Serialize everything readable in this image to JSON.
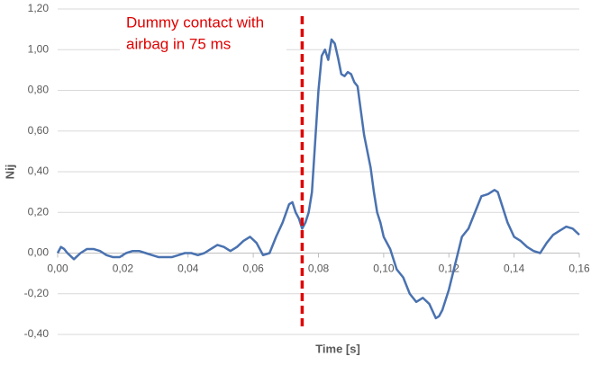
{
  "chart_data": {
    "type": "line",
    "x_label": "Time [s]",
    "y_label": "Nij",
    "xlim": [
      0,
      0.16
    ],
    "ylim": [
      -0.4,
      1.2
    ],
    "xticks": [
      {
        "value": 0,
        "label": "0,00"
      },
      {
        "value": 0.02,
        "label": "0,02"
      },
      {
        "value": 0.04,
        "label": "0,04"
      },
      {
        "value": 0.06,
        "label": "0,06"
      },
      {
        "value": 0.08,
        "label": "0,08"
      },
      {
        "value": 0.1,
        "label": "0,10"
      },
      {
        "value": 0.12,
        "label": "0,12"
      },
      {
        "value": 0.14,
        "label": "0,14"
      },
      {
        "value": 0.16,
        "label": "0,16"
      }
    ],
    "yticks": [
      {
        "value": -0.4,
        "label": "-0,40"
      },
      {
        "value": -0.2,
        "label": "-0,20"
      },
      {
        "value": 0,
        "label": "0,00"
      },
      {
        "value": 0.2,
        "label": "0,20"
      },
      {
        "value": 0.4,
        "label": "0,40"
      },
      {
        "value": 0.6,
        "label": "0,60"
      },
      {
        "value": 0.8,
        "label": "0,80"
      },
      {
        "value": 1,
        "label": "1,00"
      },
      {
        "value": 1.2,
        "label": "1,20"
      }
    ],
    "grid": true,
    "annotation": {
      "lines": [
        "Dummy contact with",
        "airbag in 75 ms"
      ],
      "x": 0.075,
      "color": "#e00000"
    },
    "series": [
      {
        "color": "#4a72b0",
        "x": [
          0,
          0.001,
          0.002,
          0.003,
          0.005,
          0.007,
          0.009,
          0.011,
          0.013,
          0.015,
          0.017,
          0.019,
          0.021,
          0.023,
          0.025,
          0.027,
          0.029,
          0.031,
          0.033,
          0.035,
          0.037,
          0.039,
          0.041,
          0.043,
          0.045,
          0.047,
          0.049,
          0.051,
          0.053,
          0.055,
          0.057,
          0.059,
          0.061,
          0.063,
          0.065,
          0.067,
          0.069,
          0.071,
          0.072,
          0.073,
          0.074,
          0.075,
          0.076,
          0.077,
          0.078,
          0.079,
          0.08,
          0.081,
          0.082,
          0.083,
          0.084,
          0.085,
          0.086,
          0.087,
          0.088,
          0.089,
          0.09,
          0.091,
          0.092,
          0.093,
          0.094,
          0.095,
          0.096,
          0.097,
          0.098,
          0.099,
          0.1,
          0.102,
          0.104,
          0.106,
          0.108,
          0.11,
          0.112,
          0.114,
          0.116,
          0.117,
          0.118,
          0.12,
          0.122,
          0.124,
          0.126,
          0.128,
          0.13,
          0.132,
          0.134,
          0.135,
          0.136,
          0.138,
          0.14,
          0.142,
          0.144,
          0.146,
          0.148,
          0.15,
          0.152,
          0.154,
          0.156,
          0.158,
          0.16
        ],
        "values": [
          0,
          0.03,
          0.02,
          0,
          -0.03,
          0,
          0.02,
          0.02,
          0.01,
          -0.01,
          -0.02,
          -0.02,
          0,
          0.01,
          0.01,
          0,
          -0.01,
          -0.02,
          -0.02,
          -0.02,
          -0.01,
          0,
          0,
          -0.01,
          0,
          0.02,
          0.04,
          0.03,
          0.01,
          0.03,
          0.06,
          0.08,
          0.05,
          -0.01,
          0,
          0.08,
          0.15,
          0.24,
          0.25,
          0.2,
          0.17,
          0.12,
          0.15,
          0.2,
          0.3,
          0.55,
          0.8,
          0.97,
          1,
          0.95,
          1.05,
          1.03,
          0.96,
          0.88,
          0.87,
          0.89,
          0.88,
          0.84,
          0.82,
          0.7,
          0.58,
          0.5,
          0.42,
          0.3,
          0.2,
          0.15,
          0.08,
          0.02,
          -0.08,
          -0.12,
          -0.2,
          -0.24,
          -0.22,
          -0.25,
          -0.32,
          -0.31,
          -0.28,
          -0.18,
          -0.05,
          0.08,
          0.12,
          0.2,
          0.28,
          0.29,
          0.31,
          0.3,
          0.25,
          0.15,
          0.08,
          0.06,
          0.03,
          0.01,
          0,
          0.05,
          0.09,
          0.11,
          0.13,
          0.12,
          0.09
        ]
      }
    ]
  }
}
